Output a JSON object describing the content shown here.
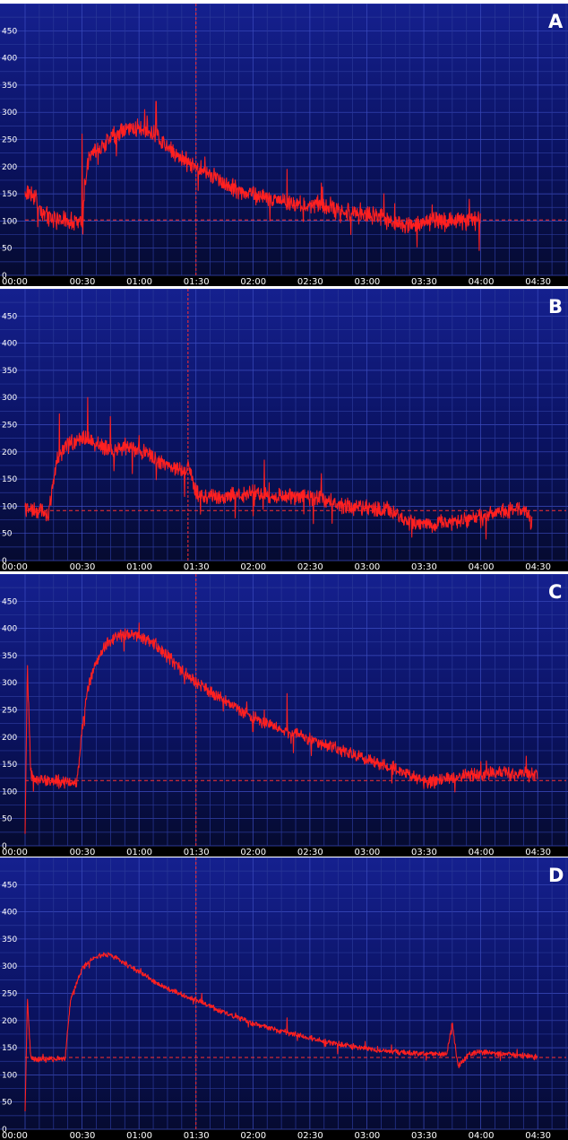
{
  "chart_data": [
    {
      "type": "line",
      "panel_label": "A",
      "xlabel": "",
      "ylabel": "",
      "xlim": [
        0,
        4.75
      ],
      "ylim": [
        0,
        500
      ],
      "yticks": [
        0,
        50,
        100,
        150,
        200,
        250,
        300,
        350,
        400,
        450
      ],
      "xticks": [
        "00:00",
        "00:30",
        "01:00",
        "01:30",
        "02:00",
        "02:30",
        "03:00",
        "03:30",
        "04:00",
        "04:30"
      ],
      "baseline": 102,
      "marker_time": 1.5,
      "grid": true,
      "series": [
        {
          "color": "#ff2020",
          "x": [
            0,
            0.05,
            0.1,
            0.15,
            0.2,
            0.3,
            0.4,
            0.45,
            0.5,
            0.52,
            0.55,
            0.6,
            0.7,
            0.8,
            0.9,
            1.0,
            1.1,
            1.2,
            1.3,
            1.4,
            1.5,
            1.6,
            1.7,
            1.8,
            1.9,
            2.0,
            2.1,
            2.2,
            2.3,
            2.4,
            2.5,
            2.6,
            2.7,
            2.8,
            2.9,
            3.0,
            3.1,
            3.2,
            3.3,
            3.4,
            3.5,
            3.6,
            3.7,
            3.8,
            3.9,
            4.0
          ],
          "y": [
            150,
            155,
            140,
            115,
            108,
            102,
            100,
            98,
            95,
            160,
            210,
            225,
            245,
            260,
            268,
            272,
            262,
            245,
            228,
            212,
            200,
            188,
            178,
            165,
            155,
            148,
            142,
            138,
            134,
            131,
            130,
            128,
            124,
            118,
            115,
            112,
            108,
            100,
            96,
            95,
            98,
            100,
            98,
            102,
            100,
            102
          ],
          "noise_amp": 20,
          "spikes": [
            [
              0.5,
              260
            ],
            [
              1.15,
              320
            ],
            [
              1.05,
              305
            ],
            [
              2.3,
              195
            ],
            [
              2.6,
              170
            ],
            [
              3.15,
              150
            ],
            [
              3.9,
              140
            ]
          ]
        }
      ]
    },
    {
      "type": "line",
      "panel_label": "B",
      "xlabel": "",
      "ylabel": "",
      "xlim": [
        0,
        4.75
      ],
      "ylim": [
        0,
        500
      ],
      "yticks": [
        0,
        50,
        100,
        150,
        200,
        250,
        300,
        350,
        400,
        450
      ],
      "xticks": [
        "00:00",
        "00:30",
        "01:00",
        "01:30",
        "02:00",
        "02:30",
        "03:00",
        "03:30",
        "04:00",
        "04:30"
      ],
      "baseline": 92,
      "marker_time": 1.43,
      "grid": true,
      "series": [
        {
          "color": "#ff2020",
          "x": [
            0,
            0.1,
            0.15,
            0.2,
            0.25,
            0.3,
            0.35,
            0.4,
            0.5,
            0.6,
            0.7,
            0.8,
            0.9,
            1.0,
            1.1,
            1.2,
            1.3,
            1.4,
            1.45,
            1.5,
            1.6,
            1.8,
            2.0,
            2.2,
            2.4,
            2.6,
            2.7,
            2.8,
            3.0,
            3.2,
            3.3,
            3.4,
            3.6,
            3.8,
            4.0,
            4.1,
            4.3,
            4.4,
            4.45
          ],
          "y": [
            95,
            90,
            95,
            78,
            150,
            190,
            210,
            215,
            225,
            220,
            208,
            205,
            210,
            202,
            195,
            180,
            170,
            165,
            170,
            123,
            120,
            118,
            125,
            118,
            118,
            115,
            108,
            100,
            98,
            92,
            80,
            70,
            68,
            72,
            80,
            88,
            95,
            92,
            70
          ],
          "noise_amp": 18,
          "spikes": [
            [
              0.55,
              300
            ],
            [
              0.3,
              270
            ],
            [
              0.75,
              265
            ],
            [
              1.0,
              230
            ],
            [
              2.1,
              185
            ],
            [
              2.6,
              160
            ],
            [
              4.0,
              60
            ]
          ]
        }
      ]
    },
    {
      "type": "line",
      "panel_label": "C",
      "xlabel": "",
      "ylabel": "",
      "xlim": [
        0,
        4.75
      ],
      "ylim": [
        0,
        500
      ],
      "yticks": [
        0,
        50,
        100,
        150,
        200,
        250,
        300,
        350,
        400,
        450
      ],
      "xticks": [
        "00:00",
        "00:30",
        "01:00",
        "01:30",
        "02:00",
        "02:30",
        "03:00",
        "03:30",
        "04:00",
        "04:30"
      ],
      "baseline": 120,
      "marker_time": 1.5,
      "grid": true,
      "series": [
        {
          "color": "#ff2020",
          "x": [
            0,
            0.02,
            0.05,
            0.1,
            0.2,
            0.3,
            0.4,
            0.45,
            0.5,
            0.55,
            0.6,
            0.7,
            0.8,
            0.9,
            1.0,
            1.1,
            1.2,
            1.3,
            1.4,
            1.5,
            1.6,
            1.7,
            1.8,
            1.9,
            2.0,
            2.1,
            2.2,
            2.3,
            2.4,
            2.5,
            2.6,
            2.7,
            2.8,
            2.9,
            3.0,
            3.1,
            3.2,
            3.3,
            3.4,
            3.5,
            3.6,
            3.7,
            3.8,
            3.9,
            4.0,
            4.1,
            4.2,
            4.3,
            4.4,
            4.5
          ],
          "y": [
            15,
            330,
            130,
            122,
            120,
            118,
            116,
            112,
            210,
            290,
            330,
            368,
            385,
            390,
            385,
            376,
            360,
            340,
            318,
            298,
            288,
            272,
            260,
            248,
            238,
            228,
            220,
            212,
            205,
            195,
            188,
            180,
            172,
            165,
            158,
            152,
            145,
            138,
            130,
            118,
            118,
            125,
            128,
            130,
            132,
            135,
            138,
            130,
            135,
            130
          ],
          "noise_amp": 14,
          "spikes": [
            [
              1.0,
              410
            ],
            [
              2.3,
              280
            ],
            [
              2.1,
              250
            ],
            [
              2.0,
              210
            ],
            [
              4.0,
              155
            ],
            [
              4.4,
              165
            ]
          ]
        }
      ]
    },
    {
      "type": "line",
      "panel_label": "D",
      "xlabel": "",
      "ylabel": "",
      "xlim": [
        0,
        4.75
      ],
      "ylim": [
        0,
        500
      ],
      "yticks": [
        0,
        50,
        100,
        150,
        200,
        250,
        300,
        350,
        400,
        450
      ],
      "xticks": [
        "00:00",
        "00:30",
        "01:00",
        "01:30",
        "02:00",
        "02:30",
        "03:00",
        "03:30",
        "04:00",
        "04:30"
      ],
      "baseline": 132,
      "marker_time": 1.5,
      "grid": true,
      "series": [
        {
          "color": "#ff2020",
          "x": [
            0,
            0.02,
            0.05,
            0.1,
            0.2,
            0.3,
            0.35,
            0.4,
            0.5,
            0.6,
            0.7,
            0.8,
            0.9,
            1.0,
            1.1,
            1.2,
            1.3,
            1.4,
            1.5,
            1.6,
            1.8,
            2.0,
            2.2,
            2.4,
            2.6,
            2.8,
            3.0,
            3.2,
            3.4,
            3.6,
            3.7,
            3.75,
            3.8,
            3.9,
            4.0,
            4.1,
            4.2,
            4.3,
            4.4,
            4.5
          ],
          "y": [
            30,
            240,
            130,
            128,
            128,
            130,
            128,
            240,
            295,
            315,
            322,
            315,
            302,
            290,
            276,
            264,
            254,
            245,
            238,
            228,
            210,
            195,
            183,
            173,
            163,
            155,
            148,
            143,
            140,
            138,
            138,
            195,
            115,
            138,
            142,
            140,
            138,
            137,
            135,
            133
          ],
          "noise_amp": 6,
          "spikes": [
            [
              1.55,
              250
            ],
            [
              2.3,
              205
            ],
            [
              3.75,
              195
            ]
          ]
        }
      ]
    }
  ]
}
